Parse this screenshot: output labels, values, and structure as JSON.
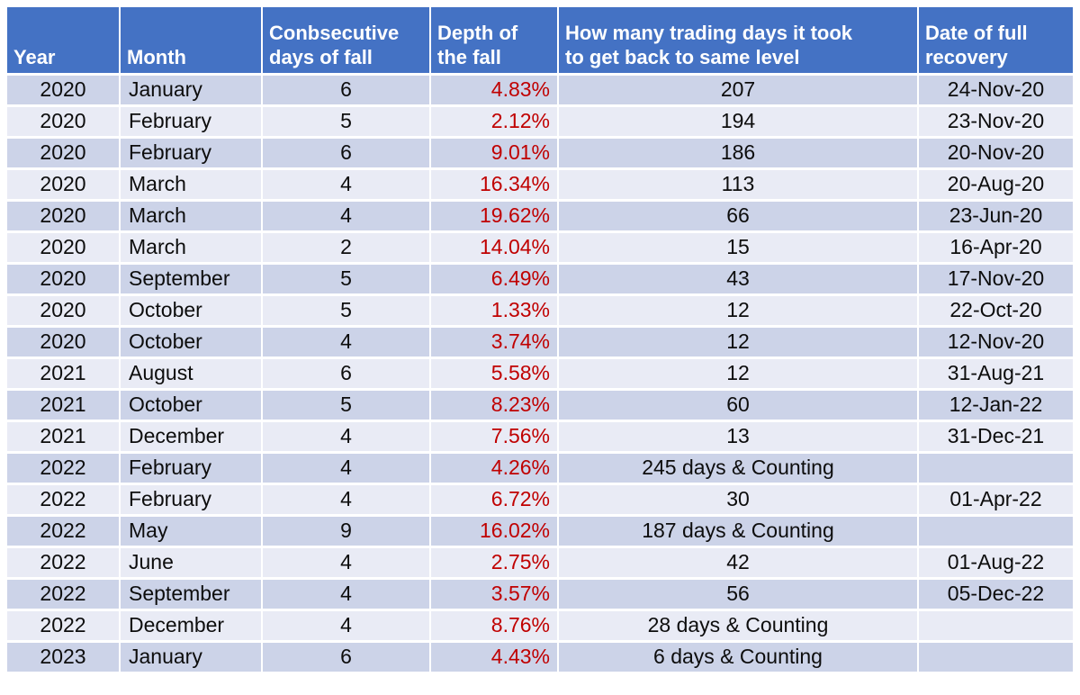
{
  "colors": {
    "header_bg": "#4472C4",
    "header_text": "#FFFFFF",
    "band_dark": "#CCD3E8",
    "band_light": "#E9EBF5",
    "depth_red": "#C00000",
    "body_text": "#0D0D0D"
  },
  "chart_data": {
    "type": "table",
    "title": "",
    "columns": [
      "Year",
      "Month",
      "Conbsecutive days of fall",
      "Depth of the fall",
      "How many trading days it took to get back to same level",
      "Date of full recovery"
    ],
    "rows": [
      {
        "year": "2020",
        "month": "January",
        "fall_days": "6",
        "depth": "4.83%",
        "trading_days": "207",
        "recovery_date": "24-Nov-20"
      },
      {
        "year": "2020",
        "month": "February",
        "fall_days": "5",
        "depth": "2.12%",
        "trading_days": "194",
        "recovery_date": "23-Nov-20"
      },
      {
        "year": "2020",
        "month": "February",
        "fall_days": "6",
        "depth": "9.01%",
        "trading_days": "186",
        "recovery_date": "20-Nov-20"
      },
      {
        "year": "2020",
        "month": "March",
        "fall_days": "4",
        "depth": "16.34%",
        "trading_days": "113",
        "recovery_date": "20-Aug-20"
      },
      {
        "year": "2020",
        "month": "March",
        "fall_days": "4",
        "depth": "19.62%",
        "trading_days": "66",
        "recovery_date": "23-Jun-20"
      },
      {
        "year": "2020",
        "month": "March",
        "fall_days": "2",
        "depth": "14.04%",
        "trading_days": "15",
        "recovery_date": "16-Apr-20"
      },
      {
        "year": "2020",
        "month": "September",
        "fall_days": "5",
        "depth": "6.49%",
        "trading_days": "43",
        "recovery_date": "17-Nov-20"
      },
      {
        "year": "2020",
        "month": "October",
        "fall_days": "5",
        "depth": "1.33%",
        "trading_days": "12",
        "recovery_date": "22-Oct-20"
      },
      {
        "year": "2020",
        "month": "October",
        "fall_days": "4",
        "depth": "3.74%",
        "trading_days": "12",
        "recovery_date": "12-Nov-20"
      },
      {
        "year": "2021",
        "month": "August",
        "fall_days": "6",
        "depth": "5.58%",
        "trading_days": "12",
        "recovery_date": "31-Aug-21"
      },
      {
        "year": "2021",
        "month": "October",
        "fall_days": "5",
        "depth": "8.23%",
        "trading_days": "60",
        "recovery_date": "12-Jan-22"
      },
      {
        "year": "2021",
        "month": "December",
        "fall_days": "4",
        "depth": "7.56%",
        "trading_days": "13",
        "recovery_date": "31-Dec-21"
      },
      {
        "year": "2022",
        "month": "February",
        "fall_days": "4",
        "depth": "4.26%",
        "trading_days": "245 days & Counting",
        "recovery_date": ""
      },
      {
        "year": "2022",
        "month": "February",
        "fall_days": "4",
        "depth": "6.72%",
        "trading_days": "30",
        "recovery_date": "01-Apr-22"
      },
      {
        "year": "2022",
        "month": "May",
        "fall_days": "9",
        "depth": "16.02%",
        "trading_days": "187 days & Counting",
        "recovery_date": ""
      },
      {
        "year": "2022",
        "month": "June",
        "fall_days": "4",
        "depth": "2.75%",
        "trading_days": "42",
        "recovery_date": "01-Aug-22"
      },
      {
        "year": "2022",
        "month": "September",
        "fall_days": "4",
        "depth": "3.57%",
        "trading_days": "56",
        "recovery_date": "05-Dec-22"
      },
      {
        "year": "2022",
        "month": "December",
        "fall_days": "4",
        "depth": "8.76%",
        "trading_days": "28 days & Counting",
        "recovery_date": ""
      },
      {
        "year": "2023",
        "month": "January",
        "fall_days": "6",
        "depth": "4.43%",
        "trading_days": "6 days & Counting",
        "recovery_date": ""
      }
    ]
  }
}
